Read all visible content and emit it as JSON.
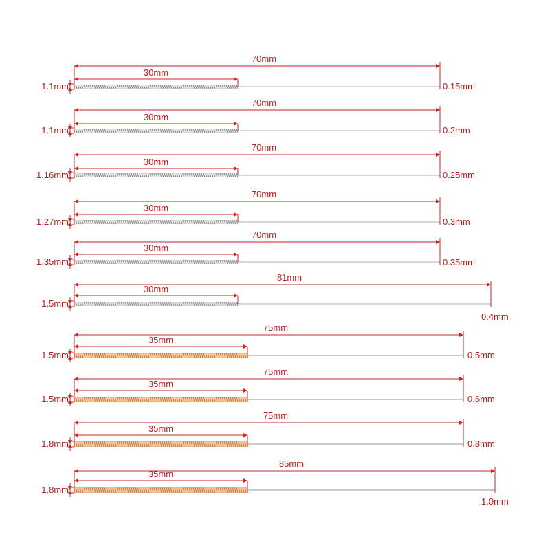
{
  "colors": {
    "dimension": "#c62828",
    "label": "#b71c1c",
    "needle": "#c9c9c9",
    "coil_silver_light": "#e6e6e6",
    "coil_silver_dark": "#8a8a8a",
    "coil_gold_light": "#f3c9a0",
    "coil_gold_dark": "#c47a3e"
  },
  "needles": [
    {
      "handle_diameter": "1.1mm",
      "handle_length": "30mm",
      "total_length": "70mm",
      "needle_diameter": "0.15mm",
      "handle_material": "silver"
    },
    {
      "handle_diameter": "1.1mm",
      "handle_length": "30mm",
      "total_length": "70mm",
      "needle_diameter": "0.2mm",
      "handle_material": "silver"
    },
    {
      "handle_diameter": "1.16mm",
      "handle_length": "30mm",
      "total_length": "70mm",
      "needle_diameter": "0.25mm",
      "handle_material": "silver"
    },
    {
      "handle_diameter": "1.27mm",
      "handle_length": "30mm",
      "total_length": "70mm",
      "needle_diameter": "0.3mm",
      "handle_material": "silver"
    },
    {
      "handle_diameter": "1.35mm",
      "handle_length": "30mm",
      "total_length": "70mm",
      "needle_diameter": "0.35mm",
      "handle_material": "silver"
    },
    {
      "handle_diameter": "1.5mm",
      "handle_length": "30mm",
      "total_length": "81mm",
      "needle_diameter": "0.4mm",
      "handle_material": "silver"
    },
    {
      "handle_diameter": "1.5mm",
      "handle_length": "35mm",
      "total_length": "75mm",
      "needle_diameter": "0.5mm",
      "handle_material": "gold"
    },
    {
      "handle_diameter": "1.5mm",
      "handle_length": "35mm",
      "total_length": "75mm",
      "needle_diameter": "0.6mm",
      "handle_material": "gold"
    },
    {
      "handle_diameter": "1.8mm",
      "handle_length": "35mm",
      "total_length": "75mm",
      "needle_diameter": "0.8mm",
      "handle_material": "gold"
    },
    {
      "handle_diameter": "1.8mm",
      "handle_length": "35mm",
      "total_length": "85mm",
      "needle_diameter": "1.0mm",
      "handle_material": "gold"
    }
  ]
}
